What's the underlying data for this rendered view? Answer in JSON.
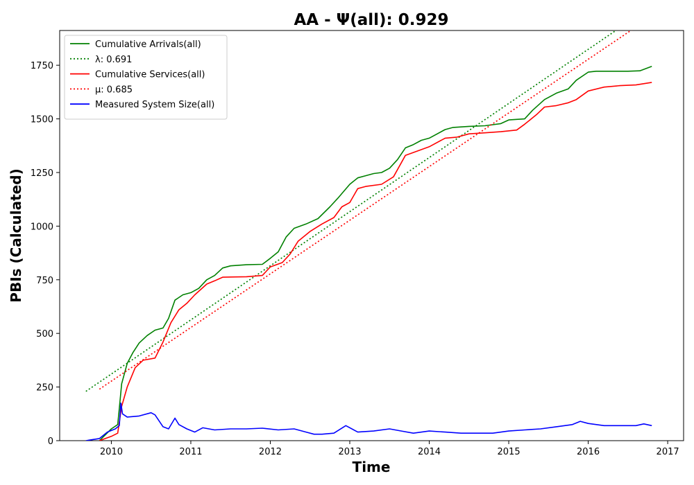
{
  "chart_data": {
    "type": "line",
    "title": "AA -  Ψ(all): 0.929",
    "xlabel": "Time",
    "ylabel": "PBIs (Calculated)",
    "xlim": [
      2009.35,
      2017.2
    ],
    "ylim": [
      0,
      1912
    ],
    "x_ticks": [
      2010,
      2011,
      2012,
      2013,
      2014,
      2015,
      2016,
      2017
    ],
    "y_ticks": [
      0,
      250,
      500,
      750,
      1000,
      1250,
      1500,
      1750
    ],
    "grid": false,
    "legend_position": "top-left",
    "series": [
      {
        "name": "Cumulative Arrivals(all)",
        "style": "solid",
        "color": "#008000",
        "x": [
          2009.85,
          2010.0,
          2010.08,
          2010.1,
          2010.13,
          2010.2,
          2010.27,
          2010.35,
          2010.45,
          2010.55,
          2010.65,
          2010.72,
          2010.8,
          2010.9,
          2011.0,
          2011.1,
          2011.2,
          2011.3,
          2011.4,
          2011.5,
          2011.7,
          2011.9,
          2012.0,
          2012.1,
          2012.2,
          2012.3,
          2012.45,
          2012.6,
          2012.75,
          2012.85,
          2013.0,
          2013.1,
          2013.2,
          2013.3,
          2013.4,
          2013.5,
          2013.6,
          2013.7,
          2013.8,
          2013.9,
          2014.0,
          2014.2,
          2014.3,
          2014.5,
          2014.7,
          2014.9,
          2015.0,
          2015.2,
          2015.3,
          2015.45,
          2015.6,
          2015.75,
          2015.85,
          2016.0,
          2016.1,
          2016.3,
          2016.5,
          2016.65,
          2016.8
        ],
        "y": [
          0,
          55,
          75,
          150,
          265,
          360,
          410,
          455,
          490,
          515,
          525,
          570,
          655,
          680,
          690,
          710,
          750,
          770,
          805,
          815,
          820,
          822,
          850,
          880,
          950,
          990,
          1010,
          1035,
          1090,
          1130,
          1195,
          1225,
          1235,
          1245,
          1250,
          1270,
          1310,
          1365,
          1380,
          1400,
          1410,
          1450,
          1460,
          1465,
          1468,
          1478,
          1495,
          1500,
          1540,
          1590,
          1620,
          1640,
          1680,
          1718,
          1722,
          1722,
          1722,
          1724,
          1745
        ]
      },
      {
        "name": "λ: 0.691",
        "style": "dotted",
        "color": "#008000",
        "x": [
          2009.68,
          2016.8
        ],
        "y": [
          230,
          2026
        ]
      },
      {
        "name": "Cumulative Services(all)",
        "style": "solid",
        "color": "#ff0000",
        "x": [
          2009.85,
          2010.0,
          2010.08,
          2010.13,
          2010.2,
          2010.3,
          2010.4,
          2010.55,
          2010.65,
          2010.75,
          2010.85,
          2010.95,
          2011.05,
          2011.2,
          2011.3,
          2011.4,
          2011.5,
          2011.7,
          2011.9,
          2012.0,
          2012.15,
          2012.25,
          2012.35,
          2012.5,
          2012.65,
          2012.8,
          2012.9,
          2013.0,
          2013.1,
          2013.2,
          2013.4,
          2013.55,
          2013.7,
          2013.85,
          2014.0,
          2014.2,
          2014.35,
          2014.5,
          2014.7,
          2014.9,
          2015.1,
          2015.2,
          2015.35,
          2015.45,
          2015.6,
          2015.75,
          2015.85,
          2016.0,
          2016.2,
          2016.4,
          2016.6,
          2016.8
        ],
        "y": [
          0,
          20,
          35,
          160,
          250,
          340,
          375,
          385,
          460,
          550,
          610,
          640,
          680,
          730,
          745,
          762,
          763,
          764,
          770,
          810,
          830,
          870,
          930,
          975,
          1010,
          1040,
          1090,
          1110,
          1175,
          1185,
          1195,
          1230,
          1330,
          1350,
          1370,
          1410,
          1415,
          1430,
          1435,
          1440,
          1448,
          1475,
          1520,
          1555,
          1562,
          1575,
          1590,
          1630,
          1648,
          1655,
          1658,
          1670
        ]
      },
      {
        "name": "μ: 0.685",
        "style": "dotted",
        "color": "#ff0000",
        "x": [
          2009.85,
          2016.8
        ],
        "y": [
          240,
          1978
        ]
      },
      {
        "name": "Measured System Size(all)",
        "style": "solid",
        "color": "#0000ff",
        "x": [
          2009.68,
          2009.85,
          2009.95,
          2010.05,
          2010.1,
          2010.12,
          2010.14,
          2010.2,
          2010.35,
          2010.5,
          2010.55,
          2010.65,
          2010.72,
          2010.8,
          2010.85,
          2010.95,
          2011.05,
          2011.15,
          2011.3,
          2011.5,
          2011.7,
          2011.9,
          2012.1,
          2012.3,
          2012.45,
          2012.55,
          2012.65,
          2012.8,
          2012.95,
          2013.1,
          2013.3,
          2013.5,
          2013.65,
          2013.8,
          2014.0,
          2014.2,
          2014.4,
          2014.6,
          2014.8,
          2015.0,
          2015.2,
          2015.4,
          2015.6,
          2015.8,
          2015.9,
          2016.0,
          2016.2,
          2016.4,
          2016.6,
          2016.7,
          2016.8
        ],
        "y": [
          0,
          10,
          40,
          55,
          70,
          175,
          125,
          110,
          115,
          130,
          120,
          65,
          55,
          105,
          75,
          55,
          40,
          60,
          50,
          55,
          55,
          58,
          50,
          55,
          40,
          30,
          30,
          35,
          70,
          40,
          45,
          55,
          45,
          35,
          45,
          40,
          35,
          35,
          35,
          45,
          50,
          55,
          65,
          75,
          90,
          80,
          70,
          70,
          70,
          78,
          70
        ]
      }
    ]
  }
}
